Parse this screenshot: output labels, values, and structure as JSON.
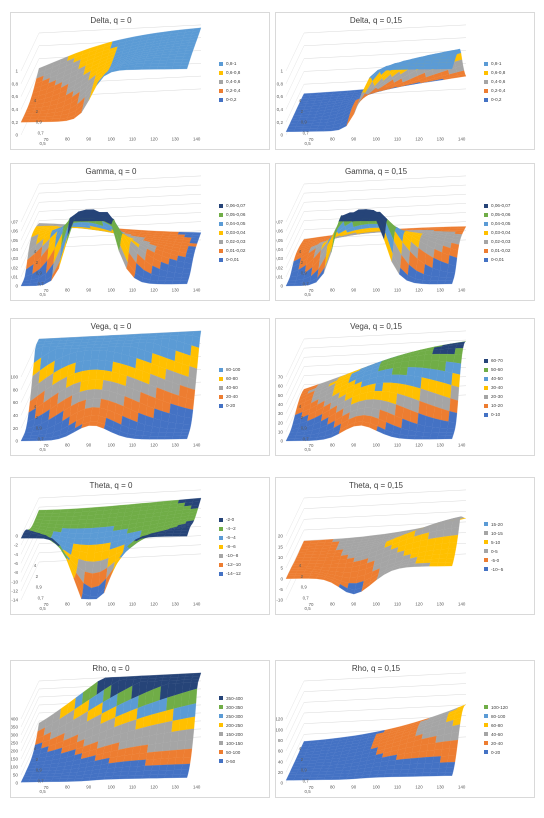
{
  "chart_data": [
    {
      "type": "surface",
      "title": "Delta, q = 0",
      "ylim": [
        0,
        1
      ],
      "y_ticks": [
        "0",
        "0,2",
        "0,4",
        "0,6",
        "0,8",
        "1"
      ],
      "x_ticks": [
        "70",
        "80",
        "90",
        "100",
        "110",
        "120",
        "130",
        "140"
      ],
      "t_ticks": [
        "4",
        "2",
        "0,9",
        "0,7",
        "0,5",
        "0,3"
      ],
      "t_label": "0,1",
      "legend": [
        "0,8-1",
        "0,6-0,8",
        "0,4-0,6",
        "0,2-0,4",
        "0-0,2"
      ],
      "legend_colors": [
        "#5b9bd5",
        "#ffc000",
        "#a5a5a5",
        "#ed7d31",
        "#4472c4"
      ]
    },
    {
      "type": "surface",
      "title": "Delta, q = 0,15",
      "ylim": [
        0,
        1
      ],
      "y_ticks": [
        "0",
        "0,2",
        "0,4",
        "0,6",
        "0,8",
        "1"
      ],
      "x_ticks": [
        "70",
        "80",
        "90",
        "100",
        "110",
        "120",
        "130",
        "140"
      ],
      "t_ticks": [
        "4",
        "2",
        "0,9",
        "0,7",
        "0,5",
        "0,3"
      ],
      "t_label": "0,1",
      "legend": [
        "0,8-1",
        "0,6-0,8",
        "0,4-0,6",
        "0,2-0,4",
        "0-0,2"
      ],
      "legend_colors": [
        "#5b9bd5",
        "#ffc000",
        "#a5a5a5",
        "#ed7d31",
        "#4472c4"
      ]
    },
    {
      "type": "surface",
      "title": "Gamma, q = 0",
      "ylim": [
        0,
        0.07
      ],
      "y_ticks": [
        "0",
        "0,01",
        "0,02",
        "0,03",
        "0,04",
        "0,05",
        "0,06",
        "0,07"
      ],
      "x_ticks": [
        "70",
        "80",
        "90",
        "100",
        "110",
        "120",
        "130",
        "140"
      ],
      "t_ticks": [
        "4",
        "2",
        "0,9",
        "0,7",
        "0,5",
        "0,3"
      ],
      "t_label": "0,1",
      "legend": [
        "0,06-0,07",
        "0,05-0,06",
        "0,04-0,05",
        "0,03-0,04",
        "0,02-0,03",
        "0,01-0,02",
        "0-0,01"
      ],
      "legend_colors": [
        "#264478",
        "#70ad47",
        "#5b9bd5",
        "#ffc000",
        "#a5a5a5",
        "#ed7d31",
        "#4472c4"
      ]
    },
    {
      "type": "surface",
      "title": "Gamma, q = 0,15",
      "ylim": [
        0,
        0.07
      ],
      "y_ticks": [
        "0",
        "0,01",
        "0,02",
        "0,03",
        "0,04",
        "0,05",
        "0,06",
        "0,07"
      ],
      "x_ticks": [
        "70",
        "80",
        "90",
        "100",
        "110",
        "120",
        "130",
        "140"
      ],
      "t_ticks": [
        "4",
        "2",
        "0,9",
        "0,7",
        "0,5",
        "0,3"
      ],
      "t_label": "0,1",
      "legend": [
        "0,06-0,07",
        "0,05-0,06",
        "0,04-0,05",
        "0,03-0,04",
        "0,02-0,03",
        "0,01-0,02",
        "0-0,01"
      ],
      "legend_colors": [
        "#264478",
        "#70ad47",
        "#5b9bd5",
        "#ffc000",
        "#a5a5a5",
        "#ed7d31",
        "#4472c4"
      ]
    },
    {
      "type": "surface",
      "title": "Vega, q = 0",
      "ylim": [
        0,
        100
      ],
      "y_ticks": [
        "0",
        "20",
        "40",
        "60",
        "80",
        "100"
      ],
      "x_ticks": [
        "70",
        "80",
        "90",
        "100",
        "110",
        "120",
        "130",
        "140"
      ],
      "t_ticks": [
        "4",
        "2",
        "0,9",
        "0,7",
        "0,5",
        "0,3"
      ],
      "t_label": "0,1",
      "legend": [
        "80-100",
        "60-80",
        "40-60",
        "20-40",
        "0-20"
      ],
      "legend_colors": [
        "#5b9bd5",
        "#ffc000",
        "#a5a5a5",
        "#ed7d31",
        "#4472c4"
      ]
    },
    {
      "type": "surface",
      "title": "Vega, q = 0,15",
      "ylim": [
        0,
        70
      ],
      "y_ticks": [
        "0",
        "10",
        "20",
        "30",
        "40",
        "50",
        "60",
        "70"
      ],
      "x_ticks": [
        "70",
        "80",
        "90",
        "100",
        "110",
        "120",
        "130",
        "140"
      ],
      "t_ticks": [
        "4",
        "2",
        "0,9",
        "0,7",
        "0,5",
        "0,3"
      ],
      "t_label": "0,1",
      "legend": [
        "60-70",
        "50-60",
        "40-50",
        "30-40",
        "20-30",
        "10-20",
        "0-10"
      ],
      "legend_colors": [
        "#264478",
        "#70ad47",
        "#5b9bd5",
        "#ffc000",
        "#a5a5a5",
        "#ed7d31",
        "#4472c4"
      ]
    },
    {
      "type": "surface",
      "title": "Theta, q = 0",
      "ylim": [
        -14,
        0
      ],
      "y_ticks": [
        "-14",
        "-12",
        "-10",
        "-8",
        "-6",
        "-4",
        "-2",
        "0"
      ],
      "x_ticks": [
        "70",
        "80",
        "90",
        "100",
        "110",
        "120",
        "130",
        "140"
      ],
      "t_ticks": [
        "4",
        "2",
        "0,9",
        "0,7",
        "0,5",
        "0,3"
      ],
      "t_label": "0,1",
      "legend": [
        "-2-0",
        "-4--2",
        "-6--4",
        "-8--6",
        "-10--8",
        "-12--10",
        "-14--12"
      ],
      "legend_colors": [
        "#264478",
        "#70ad47",
        "#5b9bd5",
        "#ffc000",
        "#a5a5a5",
        "#ed7d31",
        "#4472c4"
      ]
    },
    {
      "type": "surface",
      "title": "Theta, q = 0,15",
      "ylim": [
        -10,
        20
      ],
      "y_ticks": [
        "-10",
        "-5",
        "0",
        "5",
        "10",
        "15",
        "20"
      ],
      "x_ticks": [
        "70",
        "80",
        "90",
        "100",
        "110",
        "120",
        "130",
        "140"
      ],
      "t_ticks": [
        "4",
        "2",
        "0,9",
        "0,7",
        "0,5",
        "0,3"
      ],
      "t_label": "0,1",
      "legend": [
        "15-20",
        "10-15",
        "5-10",
        "0-5",
        "-5-0",
        "-10--5"
      ],
      "legend_colors": [
        "#5b9bd5",
        "#a5a5a5",
        "#ffc000",
        "#a5a5a5",
        "#ed7d31",
        "#4472c4"
      ]
    },
    {
      "type": "surface",
      "title": "Rho, q = 0",
      "ylim": [
        0,
        400
      ],
      "y_ticks": [
        "0",
        "50",
        "100",
        "150",
        "200",
        "250",
        "300",
        "350",
        "400"
      ],
      "x_ticks": [
        "70",
        "80",
        "90",
        "100",
        "110",
        "120",
        "130",
        "140"
      ],
      "t_ticks": [
        "4",
        "2",
        "0,9",
        "0,7",
        "0,5",
        "0,3"
      ],
      "t_label": "0,1",
      "legend": [
        "350-400",
        "300-350",
        "250-300",
        "200-250",
        "150-200",
        "100-150",
        "50-100",
        "0-50"
      ],
      "legend_colors": [
        "#264478",
        "#70ad47",
        "#5b9bd5",
        "#ffc000",
        "#a5a5a5",
        "#a5a5a5",
        "#ed7d31",
        "#4472c4"
      ]
    },
    {
      "type": "surface",
      "title": "Rho, q = 0,15",
      "ylim": [
        0,
        120
      ],
      "y_ticks": [
        "0",
        "20",
        "40",
        "60",
        "80",
        "100",
        "120"
      ],
      "x_ticks": [
        "70",
        "80",
        "90",
        "100",
        "110",
        "120",
        "130",
        "140"
      ],
      "t_ticks": [
        "4",
        "2",
        "0,9",
        "0,7",
        "0,5",
        "0,3"
      ],
      "t_label": "0,1",
      "legend": [
        "100-120",
        "80-100",
        "60-80",
        "40-60",
        "20-40",
        "0-20"
      ],
      "legend_colors": [
        "#70ad47",
        "#5b9bd5",
        "#ffc000",
        "#a5a5a5",
        "#ed7d31",
        "#4472c4"
      ]
    }
  ]
}
